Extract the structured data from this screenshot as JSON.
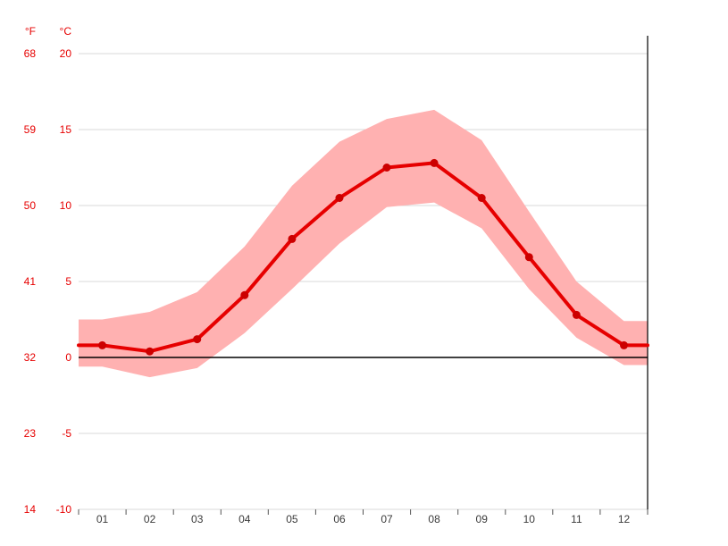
{
  "chart_data": {
    "type": "line",
    "unit_headers": {
      "left": "°F",
      "right": "°C"
    },
    "categories": [
      "01",
      "02",
      "03",
      "04",
      "05",
      "06",
      "07",
      "08",
      "09",
      "10",
      "11",
      "12"
    ],
    "series": [
      {
        "name": "mean-temperature-celsius",
        "values": [
          0.8,
          0.4,
          1.2,
          4.1,
          7.8,
          10.5,
          12.5,
          12.8,
          10.5,
          6.6,
          2.8,
          0.8
        ]
      },
      {
        "name": "band-max-celsius",
        "values": [
          2.5,
          3.0,
          4.3,
          7.3,
          11.3,
          14.2,
          15.7,
          16.3,
          14.3,
          9.6,
          5.0,
          2.4
        ]
      },
      {
        "name": "band-min-celsius",
        "values": [
          -0.6,
          -1.3,
          -0.7,
          1.6,
          4.5,
          7.5,
          9.9,
          10.2,
          8.5,
          4.5,
          1.3,
          -0.5
        ]
      }
    ],
    "yticks": [
      {
        "f": "68",
        "c": "20"
      },
      {
        "f": "59",
        "c": "15"
      },
      {
        "f": "50",
        "c": "10"
      },
      {
        "f": "41",
        "c": "5"
      },
      {
        "f": "32",
        "c": "0"
      },
      {
        "f": "23",
        "c": "-5"
      },
      {
        "f": "14",
        "c": "-10"
      }
    ],
    "ylim": [
      -10,
      20
    ],
    "grid": true,
    "zero_line_at": 0,
    "legend": "none",
    "colors": {
      "line": "#e60000",
      "point": "#cc0000",
      "band": "#ffb1b1",
      "axis_text": "#e60000",
      "month_text": "#3a3a3a",
      "grid": "#d9d9d9",
      "zero_line": "#000000",
      "axis_line": "#000000",
      "tick": "#555555",
      "background": "#ffffff"
    }
  }
}
